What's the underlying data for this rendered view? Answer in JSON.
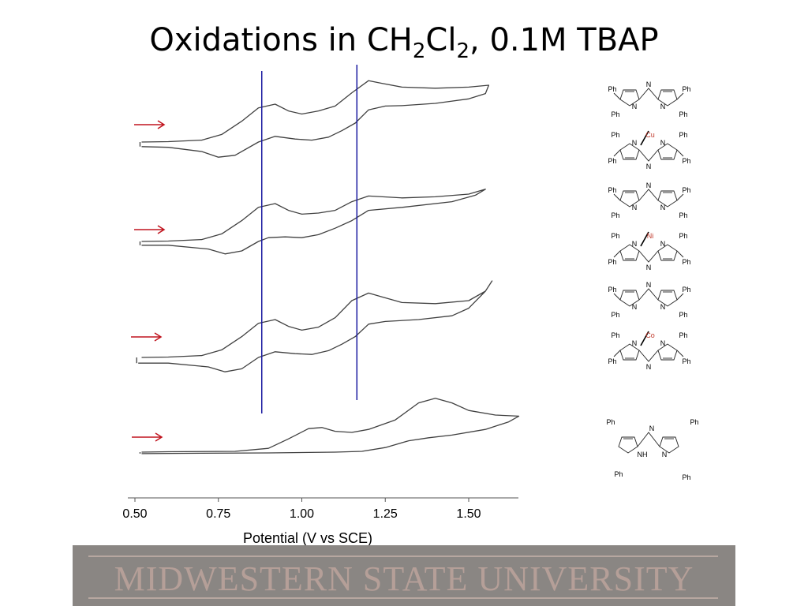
{
  "title": {
    "main": "Oxidations in CH",
    "sub1": "2",
    "mid": "Cl",
    "sub2": "2",
    "tail": ", 0.1M TBAP"
  },
  "footer": {
    "text": "MIDWESTERN STATE UNIVERSITY"
  },
  "colors": {
    "trace": "#404040",
    "marker_line": "#1a1aa0",
    "arrow": "#c0141e",
    "metal": "#c0392b"
  },
  "chart_data": {
    "type": "line",
    "title": "",
    "xlabel": "Potential (V vs SCE)",
    "ylabel": "",
    "xlim": [
      0.5,
      1.66
    ],
    "x_ticks": [
      "0.50",
      "0.75",
      "1.00",
      "1.25",
      "1.50"
    ],
    "x_tick_values": [
      0.5,
      0.75,
      1.0,
      1.25,
      1.5
    ],
    "grid": false,
    "vertical_lines": [
      0.88,
      1.165
    ],
    "series": [
      {
        "forward": [
          [
            0.52,
            0.0
          ],
          [
            0.6,
            0.01
          ],
          [
            0.7,
            0.05
          ],
          [
            0.76,
            0.2
          ],
          [
            0.82,
            0.55
          ],
          [
            0.87,
            0.9
          ],
          [
            0.92,
            1.0
          ],
          [
            0.96,
            0.82
          ],
          [
            1.0,
            0.74
          ],
          [
            1.05,
            0.82
          ],
          [
            1.1,
            0.95
          ],
          [
            1.15,
            1.3
          ],
          [
            1.2,
            1.62
          ],
          [
            1.24,
            1.55
          ],
          [
            1.3,
            1.45
          ],
          [
            1.4,
            1.42
          ],
          [
            1.5,
            1.45
          ],
          [
            1.56,
            1.5
          ]
        ],
        "reverse": [
          [
            1.56,
            1.5
          ],
          [
            1.55,
            1.28
          ],
          [
            1.5,
            1.14
          ],
          [
            1.4,
            1.02
          ],
          [
            1.3,
            0.96
          ],
          [
            1.25,
            0.95
          ],
          [
            1.2,
            0.85
          ],
          [
            1.16,
            0.5
          ],
          [
            1.12,
            0.3
          ],
          [
            1.08,
            0.13
          ],
          [
            1.03,
            0.05
          ],
          [
            0.98,
            0.08
          ],
          [
            0.92,
            0.15
          ],
          [
            0.87,
            0.0
          ],
          [
            0.8,
            -0.35
          ],
          [
            0.75,
            -0.4
          ],
          [
            0.7,
            -0.25
          ],
          [
            0.6,
            -0.14
          ],
          [
            0.52,
            -0.12
          ]
        ]
      },
      {
        "forward": [
          [
            0.52,
            0.0
          ],
          [
            0.6,
            0.01
          ],
          [
            0.7,
            0.05
          ],
          [
            0.76,
            0.2
          ],
          [
            0.82,
            0.55
          ],
          [
            0.87,
            0.9
          ],
          [
            0.92,
            1.0
          ],
          [
            0.96,
            0.82
          ],
          [
            1.0,
            0.72
          ],
          [
            1.05,
            0.75
          ],
          [
            1.1,
            0.82
          ],
          [
            1.15,
            1.05
          ],
          [
            1.2,
            1.2
          ],
          [
            1.3,
            1.15
          ],
          [
            1.4,
            1.18
          ],
          [
            1.5,
            1.25
          ],
          [
            1.55,
            1.38
          ]
        ],
        "reverse": [
          [
            1.55,
            1.38
          ],
          [
            1.52,
            1.22
          ],
          [
            1.45,
            1.05
          ],
          [
            1.3,
            0.9
          ],
          [
            1.2,
            0.82
          ],
          [
            1.15,
            0.55
          ],
          [
            1.1,
            0.35
          ],
          [
            1.05,
            0.18
          ],
          [
            1.0,
            0.1
          ],
          [
            0.95,
            0.12
          ],
          [
            0.9,
            0.1
          ],
          [
            0.87,
            0.0
          ],
          [
            0.82,
            -0.25
          ],
          [
            0.77,
            -0.33
          ],
          [
            0.72,
            -0.2
          ],
          [
            0.6,
            -0.1
          ],
          [
            0.52,
            -0.1
          ]
        ]
      },
      {
        "forward": [
          [
            0.52,
            0.0
          ],
          [
            0.6,
            0.01
          ],
          [
            0.7,
            0.05
          ],
          [
            0.76,
            0.2
          ],
          [
            0.82,
            0.55
          ],
          [
            0.87,
            0.9
          ],
          [
            0.92,
            1.0
          ],
          [
            0.96,
            0.82
          ],
          [
            1.0,
            0.72
          ],
          [
            1.05,
            0.8
          ],
          [
            1.1,
            1.05
          ],
          [
            1.15,
            1.5
          ],
          [
            1.2,
            1.7
          ],
          [
            1.24,
            1.6
          ],
          [
            1.3,
            1.45
          ],
          [
            1.4,
            1.42
          ],
          [
            1.5,
            1.5
          ],
          [
            1.55,
            1.75
          ],
          [
            1.57,
            2.02
          ]
        ],
        "reverse": [
          [
            1.57,
            2.02
          ],
          [
            1.55,
            1.75
          ],
          [
            1.5,
            1.3
          ],
          [
            1.45,
            1.1
          ],
          [
            1.35,
            1.0
          ],
          [
            1.25,
            0.95
          ],
          [
            1.2,
            0.88
          ],
          [
            1.16,
            0.55
          ],
          [
            1.12,
            0.35
          ],
          [
            1.08,
            0.18
          ],
          [
            1.03,
            0.08
          ],
          [
            0.98,
            0.1
          ],
          [
            0.92,
            0.15
          ],
          [
            0.87,
            0.0
          ],
          [
            0.82,
            -0.3
          ],
          [
            0.77,
            -0.38
          ],
          [
            0.72,
            -0.25
          ],
          [
            0.6,
            -0.15
          ],
          [
            0.51,
            -0.15
          ]
        ]
      },
      {
        "forward": [
          [
            0.52,
            0.0
          ],
          [
            0.6,
            0.01
          ],
          [
            0.8,
            0.02
          ],
          [
            0.9,
            0.1
          ],
          [
            0.96,
            0.35
          ],
          [
            1.02,
            0.62
          ],
          [
            1.06,
            0.65
          ],
          [
            1.1,
            0.55
          ],
          [
            1.15,
            0.52
          ],
          [
            1.2,
            0.6
          ],
          [
            1.28,
            0.85
          ],
          [
            1.35,
            1.3
          ],
          [
            1.4,
            1.42
          ],
          [
            1.45,
            1.3
          ],
          [
            1.5,
            1.1
          ],
          [
            1.58,
            0.98
          ],
          [
            1.65,
            0.95
          ]
        ],
        "reverse": [
          [
            1.65,
            0.95
          ],
          [
            1.62,
            0.8
          ],
          [
            1.55,
            0.6
          ],
          [
            1.45,
            0.45
          ],
          [
            1.38,
            0.38
          ],
          [
            1.32,
            0.3
          ],
          [
            1.25,
            0.12
          ],
          [
            1.18,
            0.02
          ],
          [
            1.1,
            0.0
          ],
          [
            0.9,
            -0.02
          ],
          [
            0.7,
            -0.03
          ],
          [
            0.52,
            -0.04
          ]
        ]
      }
    ]
  },
  "molecules": [
    {
      "metal": "Cu",
      "ph": "Ph",
      "n": "N"
    },
    {
      "metal": "Ni",
      "ph": "Ph",
      "n": "N"
    },
    {
      "metal": "Co",
      "ph": "Ph",
      "n": "N"
    },
    {
      "ph": "Ph",
      "n": "N",
      "nh": "NH"
    }
  ]
}
